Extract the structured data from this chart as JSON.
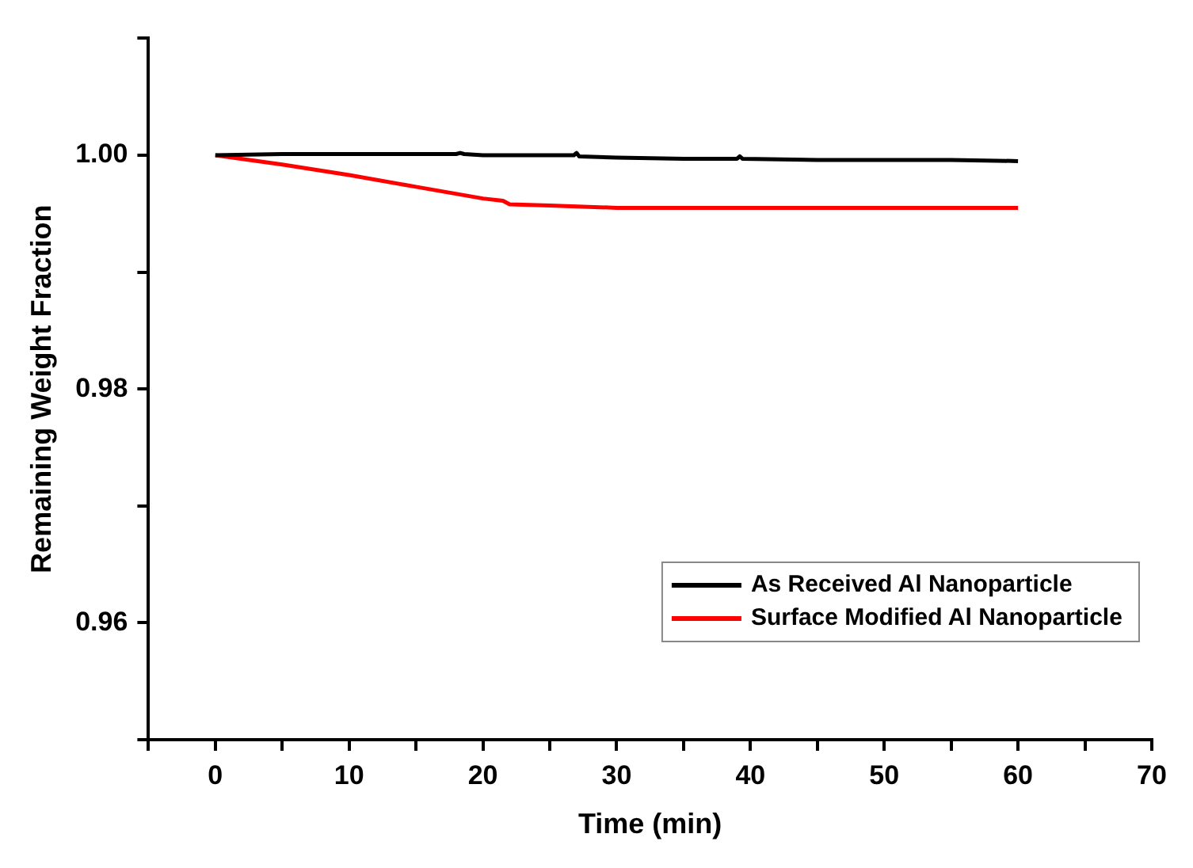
{
  "chart_data": {
    "type": "line",
    "xlabel": "Time (min)",
    "ylabel": "Remaining Weight Fraction",
    "xlim": [
      -5,
      70
    ],
    "xticks": [
      {
        "value": -5,
        "label": null
      },
      0,
      {
        "value": 5,
        "label": null
      },
      10,
      {
        "value": 15,
        "label": null
      },
      20,
      {
        "value": 25,
        "label": null
      },
      30,
      {
        "value": 35,
        "label": null
      },
      40,
      {
        "value": 45,
        "label": null
      },
      50,
      {
        "value": 55,
        "label": null
      },
      60,
      {
        "value": 65,
        "label": null
      },
      70
    ],
    "ylim": [
      0.95,
      1.01
    ],
    "yticks": [
      {
        "value": 0.95,
        "label": null
      },
      0.96,
      {
        "value": 0.97,
        "label": null
      },
      0.98,
      {
        "value": 0.99,
        "label": null
      },
      {
        "value": 1,
        "label": "1.00"
      },
      {
        "value": 1.01,
        "label": null
      }
    ],
    "grid": false,
    "legend": "bottom right",
    "marker": "none",
    "line_style": "solid",
    "series": [
      {
        "name": "As Received Al Nanoparticle",
        "color": "#000000",
        "x": [
          0,
          5,
          10,
          15,
          18,
          18.3,
          18.6,
          20,
          25,
          26.8,
          27,
          27.2,
          30,
          35,
          39,
          39.2,
          39.4,
          45,
          50,
          55,
          60
        ],
        "values": [
          1,
          1.0001,
          1.0001,
          1.0001,
          1.0001,
          1.0002,
          1.0001,
          1.0,
          1.0,
          1.0,
          1.0002,
          0.9999,
          0.9998,
          0.9997,
          0.9997,
          0.9999,
          0.9997,
          0.9996,
          0.9996,
          0.9996,
          0.9995
        ]
      },
      {
        "name": "Surface Modified Al Nanoparticle",
        "color": "#ff0000",
        "x": [
          0,
          5,
          10,
          15,
          20,
          21.5,
          22,
          25,
          30,
          35,
          40,
          45,
          50,
          55,
          60
        ],
        "values": [
          1,
          0.9992,
          0.9983,
          0.9973,
          0.9963,
          0.9961,
          0.9958,
          0.9957,
          0.9955,
          0.9955,
          0.9955,
          0.9955,
          0.9955,
          0.9955,
          0.9955
        ]
      }
    ]
  }
}
